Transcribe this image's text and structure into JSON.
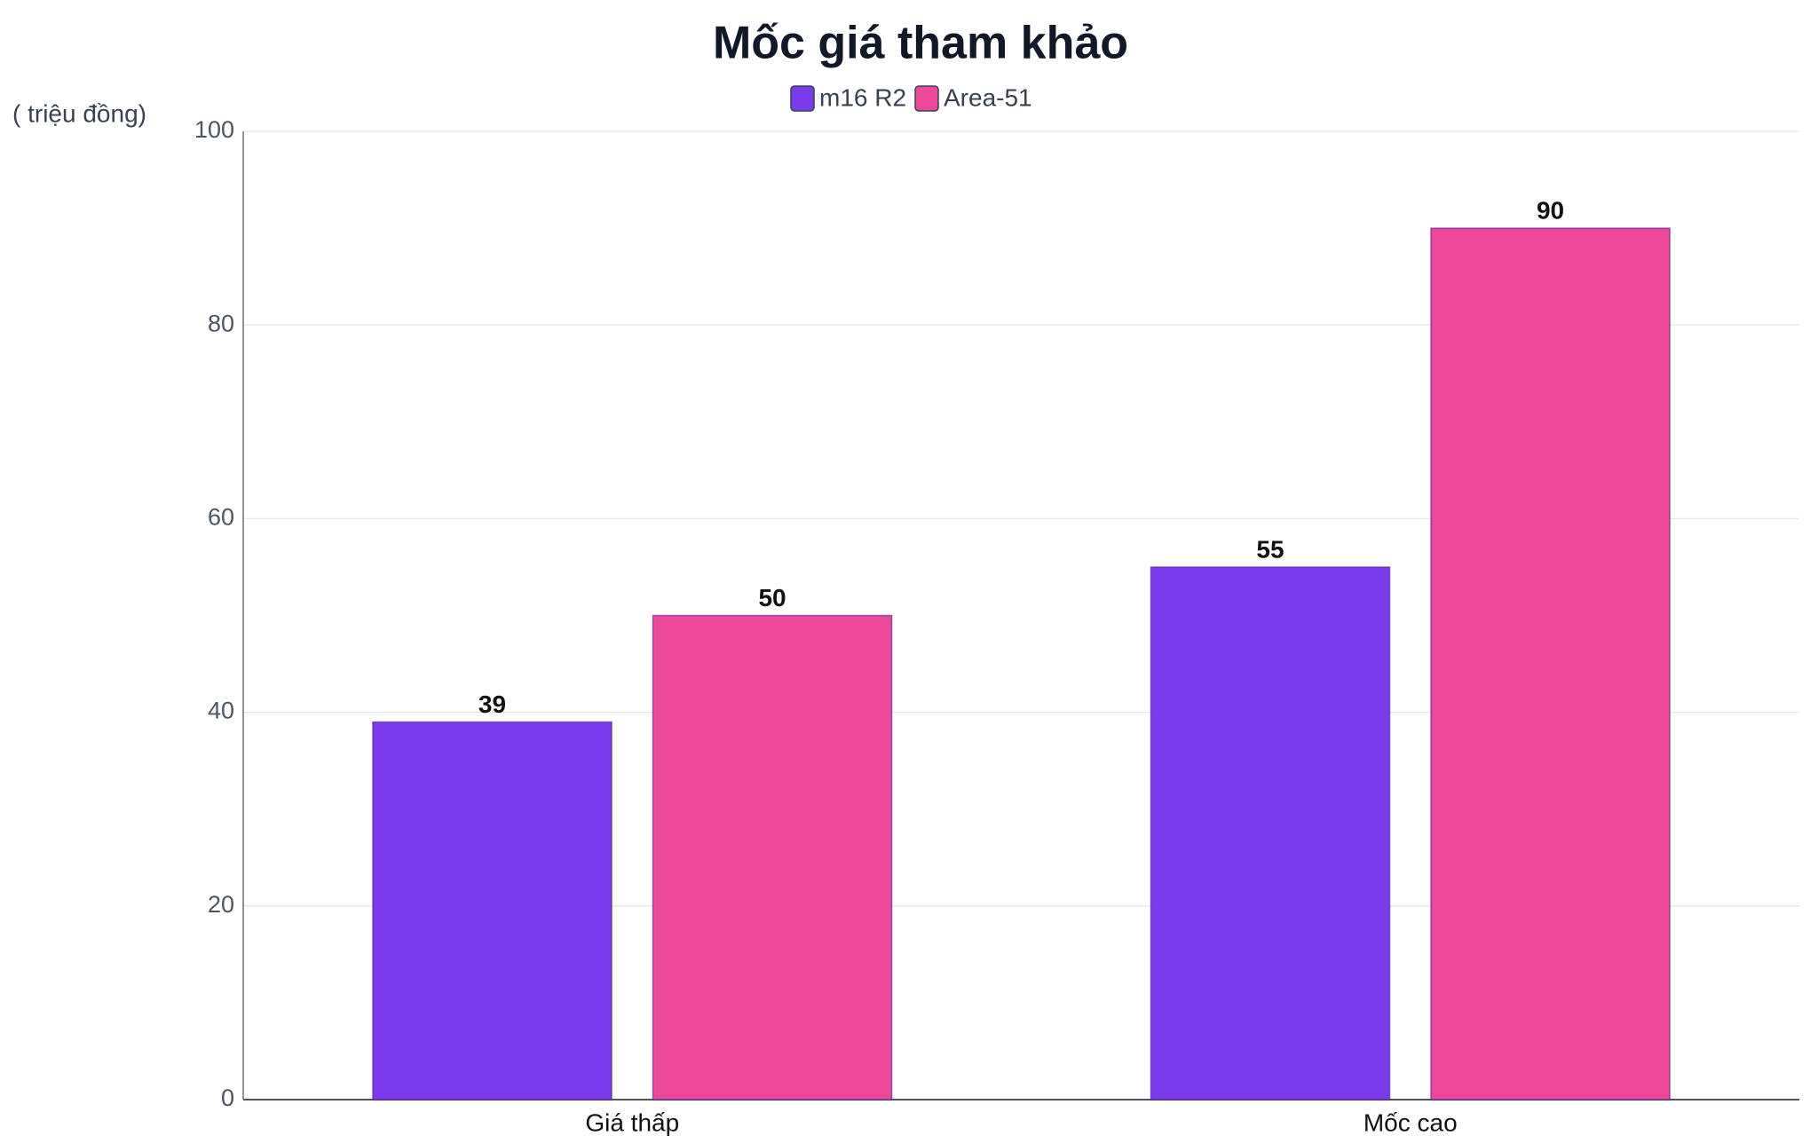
{
  "chart_data": {
    "type": "bar",
    "title": "Mốc giá tham khảo",
    "y_axis_label": "( triệu đồng)",
    "categories": [
      "Giá thấp",
      "Mốc cao"
    ],
    "series": [
      {
        "name": "m16 R2",
        "color": "#7c3aed",
        "values": [
          39,
          55
        ]
      },
      {
        "name": "Area-51",
        "color": "#ec4899",
        "values": [
          50,
          90
        ]
      }
    ],
    "ylim": [
      0,
      100
    ],
    "yticks": [
      0,
      20,
      40,
      60,
      80,
      100
    ],
    "grid": true,
    "legend": "top"
  }
}
